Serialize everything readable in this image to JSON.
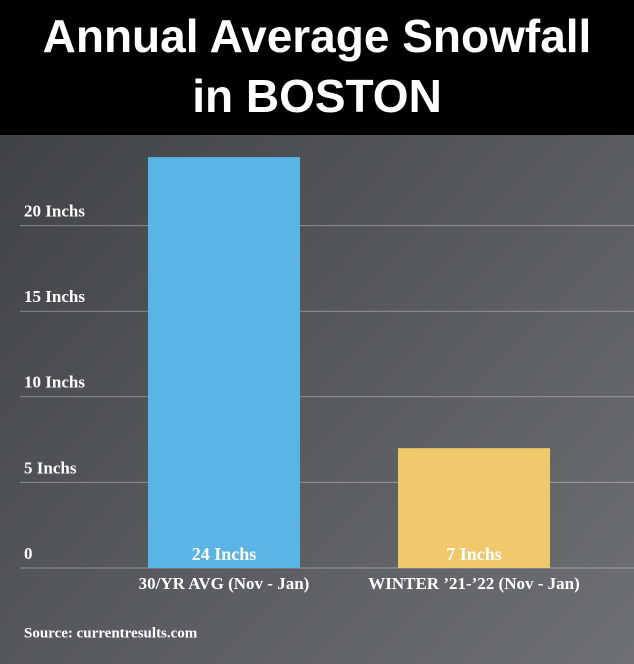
{
  "chart_data": {
    "type": "bar",
    "title": [
      "Annual Average Snowfall",
      "in BOSTON"
    ],
    "categories": [
      "30/YR AVG (Nov - Jan)",
      "WINTER ’21-’22 (Nov - Jan)"
    ],
    "values": [
      24,
      7
    ],
    "value_labels": [
      "24 Inchs",
      "7 Inchs"
    ],
    "colors": [
      "#5ab4e6",
      "#f0c96a"
    ],
    "ylim": [
      0,
      25
    ],
    "yticks": [
      0,
      {
        "value": 5,
        "label": "5 Inchs"
      },
      {
        "value": 10,
        "label": "10 Inchs"
      },
      {
        "value": 15,
        "label": "15 Inchs"
      },
      {
        "value": 20,
        "label": "20 Inchs"
      }
    ],
    "grid": true,
    "source": "Source: currentresults.com"
  }
}
